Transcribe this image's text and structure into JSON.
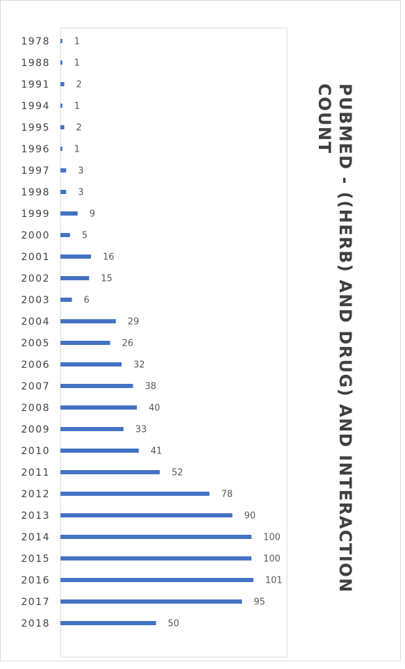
{
  "chart_data": {
    "type": "bar",
    "orientation": "horizontal",
    "title": "PUBMED - ((HERB) AND DRUG) AND INTERACTION COUNT",
    "categories": [
      "1978",
      "1988",
      "1991",
      "1994",
      "1995",
      "1996",
      "1997",
      "1998",
      "1999",
      "2000",
      "2001",
      "2002",
      "2003",
      "2004",
      "2005",
      "2006",
      "2007",
      "2008",
      "2009",
      "2010",
      "2011",
      "2012",
      "2013",
      "2014",
      "2015",
      "2016",
      "2017",
      "2018"
    ],
    "values": [
      1,
      1,
      2,
      1,
      2,
      1,
      3,
      3,
      9,
      5,
      16,
      15,
      6,
      29,
      26,
      32,
      38,
      40,
      33,
      41,
      52,
      78,
      90,
      100,
      100,
      101,
      95,
      50
    ],
    "color": "#4472c4",
    "xlim": [
      0,
      120
    ]
  }
}
